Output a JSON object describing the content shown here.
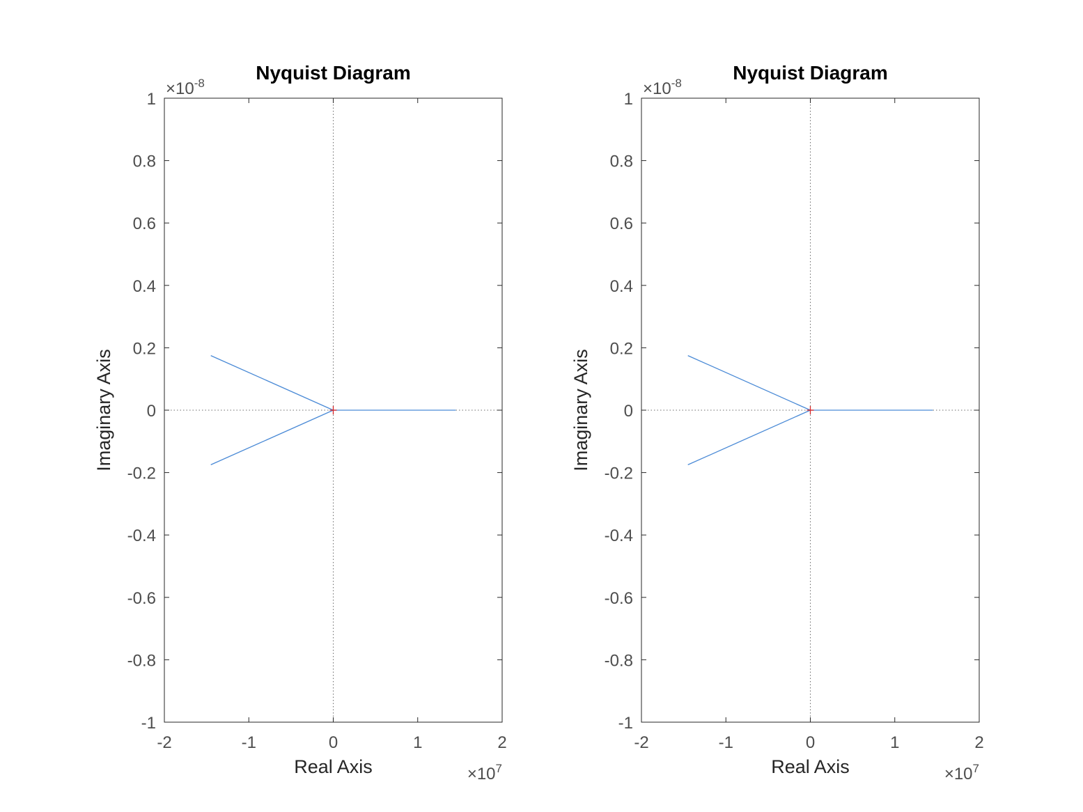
{
  "chart_data": [
    {
      "type": "line",
      "title": "Nyquist Diagram",
      "xlabel": "Real Axis",
      "ylabel": "Imaginary Axis",
      "x_exponent": {
        "base": "×10",
        "power": "7"
      },
      "y_exponent": {
        "base": "×10",
        "power": "-8"
      },
      "xlim": [
        -2,
        2
      ],
      "ylim": [
        -1,
        1
      ],
      "xticks": [
        "-2",
        "-1",
        "0",
        "1",
        "2"
      ],
      "yticks": [
        "-1",
        "-0.8",
        "-0.6",
        "-0.4",
        "-0.2",
        "0",
        "0.2",
        "0.4",
        "0.6",
        "0.8",
        "1"
      ],
      "line_color": "#4a8ad6",
      "marker_color": "#d62728",
      "critical_point": {
        "x": 0,
        "y": 0
      },
      "series": [
        {
          "x": [
            -1.45,
            0
          ],
          "y": [
            0.175,
            0
          ]
        },
        {
          "x": [
            -1.45,
            0
          ],
          "y": [
            -0.175,
            0
          ]
        },
        {
          "x": [
            0,
            1.45
          ],
          "y": [
            0,
            0
          ]
        }
      ]
    },
    {
      "type": "line",
      "title": "Nyquist Diagram",
      "xlabel": "Real Axis",
      "ylabel": "Imaginary Axis",
      "x_exponent": {
        "base": "×10",
        "power": "7"
      },
      "y_exponent": {
        "base": "×10",
        "power": "-8"
      },
      "xlim": [
        -2,
        2
      ],
      "ylim": [
        -1,
        1
      ],
      "xticks": [
        "-2",
        "-1",
        "0",
        "1",
        "2"
      ],
      "yticks": [
        "-1",
        "-0.8",
        "-0.6",
        "-0.4",
        "-0.2",
        "0",
        "0.2",
        "0.4",
        "0.6",
        "0.8",
        "1"
      ],
      "line_color": "#4a8ad6",
      "marker_color": "#d62728",
      "critical_point": {
        "x": 0,
        "y": 0
      },
      "series": [
        {
          "x": [
            -1.45,
            0
          ],
          "y": [
            0.175,
            0
          ]
        },
        {
          "x": [
            -1.45,
            0
          ],
          "y": [
            -0.175,
            0
          ]
        },
        {
          "x": [
            0,
            1.45
          ],
          "y": [
            0,
            0
          ]
        }
      ]
    }
  ]
}
